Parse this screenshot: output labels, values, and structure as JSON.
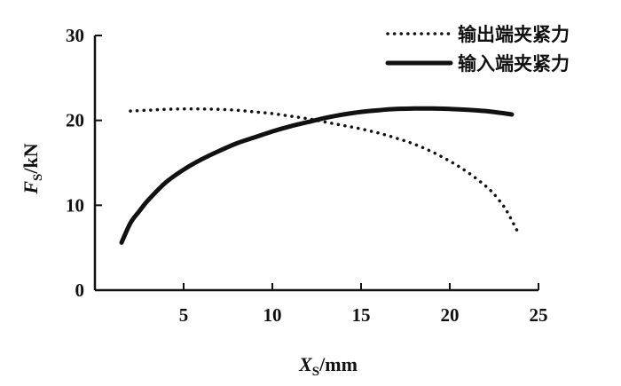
{
  "chart_data": {
    "type": "line",
    "title": "",
    "xlabel": {
      "main": "X",
      "sub": "S",
      "unit": "/mm"
    },
    "ylabel": {
      "main": "F",
      "sub": "S",
      "unit": "/kN"
    },
    "xlim": [
      0,
      25
    ],
    "ylim": [
      0,
      30
    ],
    "xticks": [
      "5",
      "10",
      "15",
      "20",
      "25"
    ],
    "yticks": [
      "0",
      "10",
      "20",
      "30"
    ],
    "grid": false,
    "legend_position": "top-right",
    "series": [
      {
        "name": "输出端夹紧力",
        "style": "dotted",
        "x": [
          2,
          3,
          4,
          5,
          6,
          7,
          8,
          9,
          10,
          11,
          12,
          13,
          14,
          15,
          16,
          17,
          18,
          19,
          20,
          21,
          22,
          22.5,
          23,
          23.3,
          23.6,
          23.8
        ],
        "y": [
          21.1,
          21.2,
          21.3,
          21.35,
          21.35,
          21.3,
          21.2,
          21.0,
          20.8,
          20.5,
          20.2,
          19.8,
          19.4,
          19.0,
          18.5,
          17.9,
          17.2,
          16.3,
          15.2,
          13.9,
          12.3,
          11.3,
          10.0,
          9.0,
          7.8,
          7.0
        ]
      },
      {
        "name": "输入端夹紧力",
        "style": "solid",
        "x": [
          1.5,
          2,
          2.5,
          3,
          4,
          5,
          6,
          7,
          8,
          9,
          10,
          11,
          12,
          13,
          14,
          15,
          16,
          17,
          18,
          19,
          20,
          21,
          22,
          23,
          23.5
        ],
        "y": [
          5.6,
          7.9,
          9.3,
          10.6,
          12.7,
          14.2,
          15.4,
          16.4,
          17.3,
          18.0,
          18.7,
          19.3,
          19.8,
          20.3,
          20.7,
          21.0,
          21.2,
          21.35,
          21.4,
          21.4,
          21.35,
          21.25,
          21.1,
          20.85,
          20.7
        ]
      }
    ]
  }
}
